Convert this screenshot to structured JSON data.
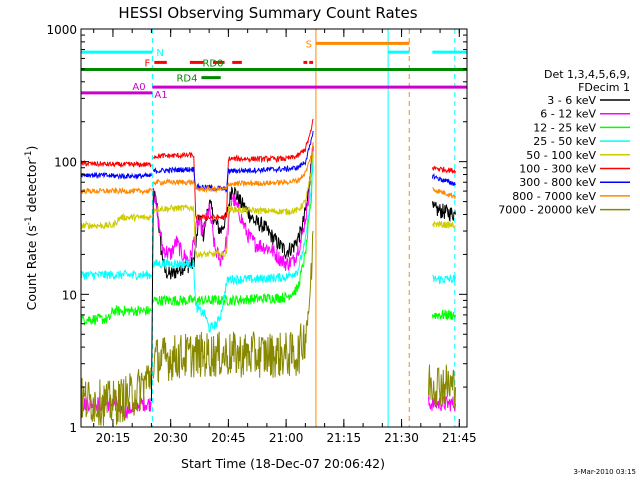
{
  "chart_data": {
    "type": "line",
    "title": "HESSI Observing Summary Count Rates",
    "xlabel": "Start Time (18-Dec-07 20:06:42)",
    "ylabel": "Count Rate (s",
    "ylabel_sup1": "-1",
    "ylabel_mid": " detector",
    "ylabel_sup2": "-1",
    "ylabel_end": ")",
    "y_scale": "log",
    "xlim": [
      "20:06:42",
      "21:47:00"
    ],
    "ylim": [
      1,
      1000
    ],
    "x_ticks": [
      "20:15",
      "20:30",
      "20:45",
      "21:00",
      "21:15",
      "21:30",
      "21:45"
    ],
    "y_ticks": [
      {
        "value": 1,
        "label": "1"
      },
      {
        "value": 10,
        "label": "10"
      },
      {
        "value": 100,
        "label": "100"
      },
      {
        "value": 1000,
        "label": "1000"
      }
    ],
    "legend": {
      "placement": "right",
      "header": [
        "Det 1,3,4,5,6,9,",
        "FDecim 1"
      ],
      "entries": [
        {
          "label": "3 - 6 keV",
          "color": "#000000"
        },
        {
          "label": "6 - 12 keV",
          "color": "#ff00ff"
        },
        {
          "label": "12 - 25 keV",
          "color": "#00ff00"
        },
        {
          "label": "25 - 50 keV",
          "color": "#00ffff"
        },
        {
          "label": "50 - 100 keV",
          "color": "#cccc00"
        },
        {
          "label": "100 - 300 keV",
          "color": "#ff0000"
        },
        {
          "label": "300 - 800 keV",
          "color": "#0000ff"
        },
        {
          "label": "800 - 7000 keV",
          "color": "#ff8800"
        },
        {
          "label": "7000 - 20000 keV",
          "color": "#888800"
        }
      ]
    },
    "series": [
      {
        "name": "3 - 6 keV",
        "color": "#000000",
        "noise": 0.12,
        "segments": [
          [
            [
              "20:25:00",
              1.5
            ],
            [
              "20:25:30",
              60
            ],
            [
              "20:26:30",
              45
            ],
            [
              "20:27:30",
              22
            ],
            [
              "20:28:30",
              15
            ],
            [
              "20:30:00",
              14
            ],
            [
              "20:33:00",
              16
            ],
            [
              "20:36:00",
              17
            ],
            [
              "20:37:30",
              40
            ],
            [
              "20:38:30",
              28
            ],
            [
              "20:40:00",
              50
            ],
            [
              "20:41:30",
              35
            ],
            [
              "20:43:00",
              30
            ],
            [
              "20:44:30",
              38
            ],
            [
              "20:46:00",
              65
            ],
            [
              "20:48:00",
              50
            ],
            [
              "20:50:00",
              42
            ],
            [
              "20:52:00",
              35
            ],
            [
              "20:54:00",
              33
            ],
            [
              "20:56:00",
              28
            ],
            [
              "20:58:00",
              24
            ],
            [
              "21:00:00",
              21
            ],
            [
              "21:02:00",
              23
            ],
            [
              "21:04:00",
              30
            ],
            [
              "21:05:30",
              50
            ],
            [
              "21:06:30",
              95
            ],
            [
              "21:07:00",
              130
            ]
          ],
          [
            [
              "21:38:00",
              44
            ],
            [
              "21:41:00",
              42
            ],
            [
              "21:44:00",
              40
            ]
          ]
        ]
      },
      {
        "name": "6 - 12 keV",
        "color": "#ff00ff",
        "noise": 0.12,
        "segments": [
          [
            [
              "20:06:42",
              1.5
            ],
            [
              "20:16:00",
              1.5
            ],
            [
              "20:18:00",
              1.3
            ],
            [
              "20:22:00",
              1.5
            ],
            [
              "20:25:00",
              1.5
            ]
          ],
          [
            [
              "20:25:20",
              70
            ],
            [
              "20:26:30",
              40
            ],
            [
              "20:28:00",
              22
            ],
            [
              "20:30:00",
              20
            ],
            [
              "20:31:30",
              25
            ],
            [
              "20:33:00",
              20
            ],
            [
              "20:35:00",
              18
            ],
            [
              "20:37:00",
              35
            ],
            [
              "20:38:30",
              30
            ],
            [
              "20:40:00",
              45
            ],
            [
              "20:41:30",
              22
            ],
            [
              "20:43:00",
              18
            ],
            [
              "20:44:30",
              25
            ],
            [
              "20:46:00",
              55
            ],
            [
              "20:48:00",
              40
            ],
            [
              "20:50:00",
              28
            ],
            [
              "20:52:00",
              24
            ],
            [
              "20:54:00",
              23
            ],
            [
              "20:56:00",
              22
            ],
            [
              "20:58:00",
              19
            ],
            [
              "21:00:00",
              17
            ],
            [
              "21:02:00",
              18
            ],
            [
              "21:04:00",
              26
            ],
            [
              "21:05:30",
              45
            ],
            [
              "21:06:30",
              90
            ],
            [
              "21:07:00",
              140
            ]
          ],
          [
            [
              "21:37:00",
              1.5
            ],
            [
              "21:40:00",
              1.5
            ],
            [
              "21:44:00",
              1.5
            ]
          ]
        ]
      },
      {
        "name": "12 - 25 keV",
        "color": "#00ff00",
        "noise": 0.08,
        "segments": [
          [
            [
              "20:06:42",
              6.5
            ],
            [
              "20:14:00",
              6.5
            ],
            [
              "20:15:00",
              7.5
            ],
            [
              "20:18:00",
              7.5
            ],
            [
              "20:25:00",
              7.5
            ]
          ],
          [
            [
              "20:25:30",
              9
            ],
            [
              "20:30:00",
              9
            ],
            [
              "20:36:00",
              9
            ],
            [
              "20:45:00",
              9
            ],
            [
              "21:00:00",
              9.5
            ],
            [
              "21:03:00",
              11
            ],
            [
              "21:05:00",
              20
            ],
            [
              "21:06:30",
              50
            ],
            [
              "21:07:00",
              110
            ]
          ],
          [
            [
              "21:38:00",
              7
            ],
            [
              "21:44:00",
              7
            ]
          ]
        ]
      },
      {
        "name": "25 - 50 keV",
        "color": "#00ffff",
        "noise": 0.07,
        "segments": [
          [
            [
              "20:06:42",
              14
            ],
            [
              "20:25:00",
              14
            ]
          ],
          [
            [
              "20:25:30",
              17
            ],
            [
              "20:36:00",
              17
            ],
            [
              "20:36:30",
              8
            ],
            [
              "20:39:00",
              7
            ],
            [
              "20:40:00",
              5.5
            ],
            [
              "20:42:00",
              6
            ],
            [
              "20:43:00",
              7
            ],
            [
              "20:44:30",
              12
            ],
            [
              "20:45:00",
              13
            ],
            [
              "20:52:00",
              13
            ],
            [
              "21:00:00",
              13.5
            ],
            [
              "21:03:00",
              15
            ],
            [
              "21:05:00",
              25
            ],
            [
              "21:06:30",
              60
            ],
            [
              "21:07:00",
              110
            ]
          ],
          [
            [
              "21:38:00",
              13
            ],
            [
              "21:44:00",
              13
            ]
          ]
        ]
      },
      {
        "name": "50 - 100 keV",
        "color": "#cccc00",
        "noise": 0.05,
        "segments": [
          [
            [
              "20:06:42",
              33
            ],
            [
              "20:15:00",
              33
            ],
            [
              "20:17:00",
              38
            ],
            [
              "20:25:00",
              38
            ]
          ],
          [
            [
              "20:25:30",
              44
            ],
            [
              "20:36:00",
              45
            ],
            [
              "20:36:30",
              20
            ],
            [
              "20:44:30",
              20
            ],
            [
              "20:45:00",
              44
            ],
            [
              "20:50:00",
              43
            ],
            [
              "21:00:00",
              42
            ],
            [
              "21:03:00",
              43
            ],
            [
              "21:05:00",
              50
            ],
            [
              "21:06:30",
              80
            ],
            [
              "21:07:00",
              120
            ]
          ],
          [
            [
              "21:38:00",
              34
            ],
            [
              "21:44:00",
              33
            ]
          ]
        ]
      },
      {
        "name": "100 - 300 keV",
        "color": "#ff0000",
        "noise": 0.04,
        "segments": [
          [
            [
              "20:06:42",
              97
            ],
            [
              "20:16:00",
              95
            ],
            [
              "20:25:00",
              95
            ]
          ],
          [
            [
              "20:25:30",
              110
            ],
            [
              "20:36:00",
              112
            ],
            [
              "20:36:30",
              38
            ],
            [
              "20:44:30",
              38
            ],
            [
              "20:45:00",
              105
            ],
            [
              "20:55:00",
              105
            ],
            [
              "21:00:00",
              105
            ],
            [
              "21:03:00",
              110
            ],
            [
              "21:05:00",
              125
            ],
            [
              "21:06:30",
              170
            ],
            [
              "21:07:00",
              210
            ]
          ],
          [
            [
              "21:38:00",
              90
            ],
            [
              "21:44:00",
              85
            ]
          ]
        ]
      },
      {
        "name": "300 - 800 keV",
        "color": "#0000ff",
        "noise": 0.04,
        "segments": [
          [
            [
              "20:06:42",
              80
            ],
            [
              "20:16:00",
              78
            ],
            [
              "20:25:00",
              78
            ]
          ],
          [
            [
              "20:25:30",
              85
            ],
            [
              "20:36:00",
              88
            ],
            [
              "20:36:30",
              65
            ],
            [
              "20:44:30",
              62
            ],
            [
              "20:45:00",
              85
            ],
            [
              "20:55:00",
              87
            ],
            [
              "21:00:00",
              88
            ],
            [
              "21:03:00",
              90
            ],
            [
              "21:05:00",
              100
            ],
            [
              "21:06:30",
              140
            ],
            [
              "21:07:00",
              170
            ]
          ],
          [
            [
              "21:38:00",
              78
            ],
            [
              "21:41:00",
              72
            ],
            [
              "21:44:00",
              68
            ]
          ]
        ]
      },
      {
        "name": "800 - 7000 keV",
        "color": "#ff8800",
        "noise": 0.04,
        "segments": [
          [
            [
              "20:06:42",
              60
            ],
            [
              "20:16:00",
              60
            ],
            [
              "20:25:00",
              60
            ]
          ],
          [
            [
              "20:25:30",
              70
            ],
            [
              "20:36:00",
              70
            ],
            [
              "20:36:30",
              62
            ],
            [
              "20:44:30",
              62
            ],
            [
              "20:45:00",
              68
            ],
            [
              "20:55:00",
              69
            ],
            [
              "21:00:00",
              70
            ],
            [
              "21:03:00",
              72
            ],
            [
              "21:05:00",
              82
            ],
            [
              "21:06:30",
              110
            ],
            [
              "21:07:00",
              140
            ]
          ],
          [
            [
              "21:38:00",
              62
            ],
            [
              "21:44:00",
              55
            ]
          ]
        ]
      },
      {
        "name": "7000 - 20000 keV",
        "color": "#888800",
        "noise": 0.35,
        "segments": [
          [
            [
              "20:06:42",
              1.6
            ],
            [
              "20:14:00",
              1.5
            ],
            [
              "20:15:00",
              1.5
            ],
            [
              "20:21:00",
              1.8
            ],
            [
              "20:25:00",
              2.5
            ]
          ],
          [
            [
              "20:25:30",
              3.2
            ],
            [
              "20:36:00",
              3.5
            ],
            [
              "20:45:00",
              3.5
            ],
            [
              "20:55:00",
              3.5
            ],
            [
              "21:03:00",
              3.5
            ],
            [
              "21:05:00",
              5
            ],
            [
              "21:06:30",
              12
            ],
            [
              "21:07:00",
              30
            ]
          ],
          [
            [
              "21:37:00",
              2.2
            ],
            [
              "21:44:00",
              2.0
            ]
          ]
        ]
      }
    ],
    "vertical_lines": [
      {
        "x": "20:25:15",
        "color": "#00ffff",
        "style": "dashed"
      },
      {
        "x": "21:07:45",
        "color": "#ff8800",
        "style": "solid"
      },
      {
        "x": "21:26:30",
        "color": "#00ffff",
        "style": "solid"
      },
      {
        "x": "21:32:00",
        "color": "#ff8800",
        "style": "dashed"
      },
      {
        "x": "21:43:50",
        "color": "#00ffff",
        "style": "dashed"
      }
    ],
    "flag_bars": [
      {
        "label": "N",
        "color": "#00ffff",
        "y": 670,
        "label_side": "right",
        "spans": [
          [
            "20:06:42",
            "20:25:15"
          ],
          [
            "21:26:30",
            "21:32:00"
          ],
          [
            "21:38:00",
            "21:47:00"
          ]
        ]
      },
      {
        "label": "F",
        "color": "#ff0000",
        "y": 560,
        "label_side": "left",
        "spans": [
          [
            "20:25:45",
            "20:29:00"
          ],
          [
            "20:35:00",
            "20:38:30"
          ],
          [
            "20:41:00",
            "20:44:00"
          ],
          [
            "20:46:00",
            "20:48:30"
          ],
          [
            "21:04:30",
            "21:05:30"
          ],
          [
            "21:06:00",
            "21:07:00"
          ]
        ]
      },
      {
        "label": "S",
        "color": "#ff8800",
        "y": 780,
        "label_side": "left",
        "spans": [
          [
            "21:07:45",
            "21:32:00"
          ]
        ]
      },
      {
        "label": "RD0",
        "color": "#008800",
        "y": 495,
        "label_side": "above",
        "spans": [
          [
            "20:06:42",
            "21:47:00"
          ]
        ]
      },
      {
        "label": "RD4",
        "color": "#008800",
        "y": 430,
        "label_side": "left",
        "spans": [
          [
            "20:38:00",
            "20:43:00"
          ]
        ]
      },
      {
        "label": "A0",
        "color": "#cc00cc",
        "y": 330,
        "label_side": "right",
        "spans": [
          [
            "20:06:42",
            "20:25:15"
          ]
        ]
      },
      {
        "label": "A1",
        "color": "#cc00cc",
        "y": 365,
        "label_side": "below",
        "spans": [
          [
            "20:25:15",
            "21:47:00"
          ]
        ]
      }
    ],
    "footer": "3-Mar-2010 03:15"
  }
}
